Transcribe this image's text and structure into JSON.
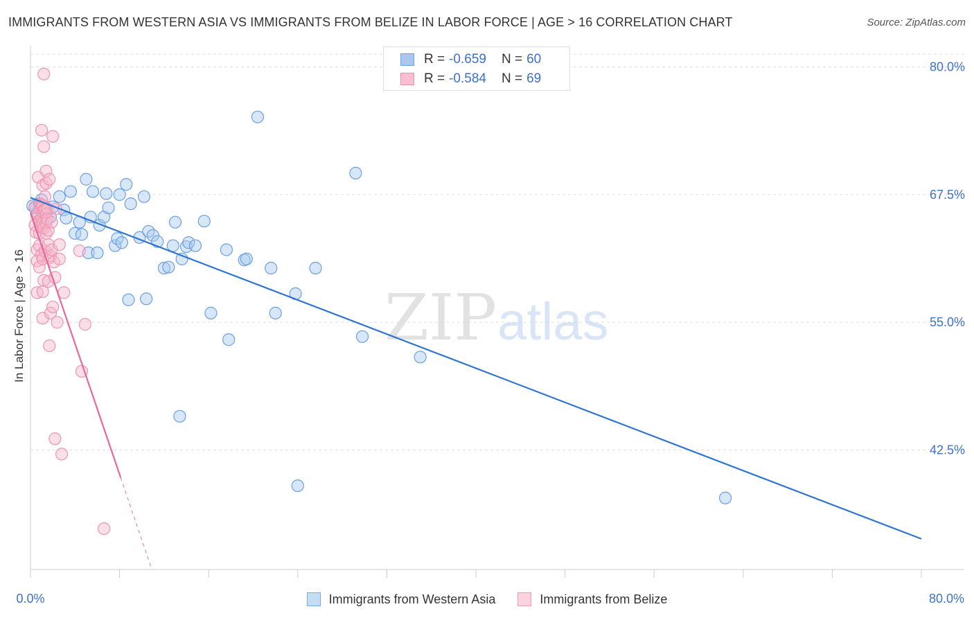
{
  "title": "IMMIGRANTS FROM WESTERN ASIA VS IMMIGRANTS FROM BELIZE IN LABOR FORCE | AGE > 16 CORRELATION CHART",
  "source": "Source: ZipAtlas.com",
  "watermark": {
    "zip": "ZIP",
    "atlas": "atlas"
  },
  "legend": {
    "r_label": "R =",
    "n_label": "N =",
    "rows": [
      {
        "r": "-0.659",
        "n": "60",
        "color": "#a8c8f0",
        "border": "#6fa0e0"
      },
      {
        "r": "-0.584",
        "n": "69",
        "color": "#f8c0d0",
        "border": "#e890a8"
      }
    ]
  },
  "bottom_legend": [
    {
      "label": "Immigrants from Western Asia",
      "color": "#c5dcf5",
      "border": "#7aaae6"
    },
    {
      "label": "Immigrants from Belize",
      "color": "#fbd3df",
      "border": "#ee9cb5"
    }
  ],
  "chart_data": {
    "type": "scatter",
    "title": "IMMIGRANTS FROM WESTERN ASIA VS IMMIGRANTS FROM BELIZE IN LABOR FORCE | AGE > 16 CORRELATION CHART",
    "xlabel": "",
    "ylabel": "In Labor Force | Age > 16",
    "xlim": [
      0,
      80
    ],
    "ylim": [
      30.8,
      81.8
    ],
    "x_tick_labels": [
      "0.0%",
      "80.0%"
    ],
    "y_ticks": [
      80.0,
      67.5,
      55.0,
      42.5
    ],
    "y_tick_labels": [
      "80.0%",
      "67.5%",
      "55.0%",
      "42.5%"
    ],
    "grid": true,
    "legend_position": "top-center",
    "series": [
      {
        "name": "Immigrants from Western Asia",
        "color": "#6a9fe3",
        "line_color": "#2f74d0",
        "trend": {
          "x": [
            0,
            80
          ],
          "y": [
            67.2,
            33.8
          ]
        },
        "points": [
          [
            0.2,
            66.4
          ],
          [
            0.4,
            66.2
          ],
          [
            0.6,
            65.7
          ],
          [
            0.8,
            66.6
          ],
          [
            1.0,
            67.0
          ],
          [
            1.4,
            66.0
          ],
          [
            1.8,
            65.3
          ],
          [
            2.0,
            66.3
          ],
          [
            2.6,
            67.3
          ],
          [
            3.0,
            66.0
          ],
          [
            3.2,
            65.2
          ],
          [
            3.6,
            67.8
          ],
          [
            4.0,
            63.7
          ],
          [
            4.4,
            64.8
          ],
          [
            4.6,
            63.6
          ],
          [
            5.0,
            69.0
          ],
          [
            5.2,
            61.8
          ],
          [
            5.4,
            65.3
          ],
          [
            5.6,
            67.8
          ],
          [
            6.0,
            61.8
          ],
          [
            6.2,
            64.5
          ],
          [
            6.6,
            65.3
          ],
          [
            6.8,
            67.6
          ],
          [
            7.0,
            66.2
          ],
          [
            7.6,
            62.5
          ],
          [
            7.8,
            63.2
          ],
          [
            8.0,
            67.5
          ],
          [
            8.2,
            62.8
          ],
          [
            8.6,
            68.5
          ],
          [
            8.8,
            57.2
          ],
          [
            9.0,
            66.6
          ],
          [
            9.8,
            63.3
          ],
          [
            10.2,
            67.3
          ],
          [
            10.4,
            57.3
          ],
          [
            10.6,
            63.9
          ],
          [
            11.0,
            63.5
          ],
          [
            11.4,
            62.9
          ],
          [
            12.0,
            60.3
          ],
          [
            12.4,
            60.4
          ],
          [
            12.8,
            62.5
          ],
          [
            13.0,
            64.8
          ],
          [
            13.4,
            45.8
          ],
          [
            13.6,
            61.2
          ],
          [
            14.0,
            62.4
          ],
          [
            14.2,
            62.8
          ],
          [
            14.8,
            62.5
          ],
          [
            15.6,
            64.9
          ],
          [
            16.2,
            55.9
          ],
          [
            17.6,
            62.1
          ],
          [
            17.8,
            53.3
          ],
          [
            19.2,
            61.1
          ],
          [
            19.4,
            61.2
          ],
          [
            20.4,
            75.1
          ],
          [
            21.6,
            60.3
          ],
          [
            22.0,
            55.9
          ],
          [
            23.8,
            57.8
          ],
          [
            24.0,
            39.0
          ],
          [
            25.6,
            60.3
          ],
          [
            29.2,
            69.6
          ],
          [
            29.8,
            53.6
          ],
          [
            35.0,
            51.6
          ],
          [
            62.4,
            37.8
          ]
        ]
      },
      {
        "name": "Immigrants from Belize",
        "color": "#f2a0b8",
        "line_color": "#e8679a",
        "trend": {
          "x": [
            0,
            8.1
          ],
          "y": [
            65.7,
            39.8
          ]
        },
        "trend_dashed": {
          "x": [
            8.1,
            10.9
          ],
          "y": [
            39.8,
            30.8
          ]
        },
        "points": [
          [
            0.4,
            66.3
          ],
          [
            0.4,
            64.5
          ],
          [
            0.5,
            63.8
          ],
          [
            0.6,
            62.1
          ],
          [
            0.6,
            61.0
          ],
          [
            0.6,
            57.9
          ],
          [
            0.7,
            69.2
          ],
          [
            0.7,
            65.6
          ],
          [
            0.8,
            65.0
          ],
          [
            0.8,
            64.8
          ],
          [
            0.8,
            63.7
          ],
          [
            0.8,
            62.5
          ],
          [
            0.8,
            60.4
          ],
          [
            0.9,
            66.6
          ],
          [
            0.9,
            66.1
          ],
          [
            0.9,
            64.5
          ],
          [
            1.0,
            73.8
          ],
          [
            1.0,
            66.5
          ],
          [
            1.0,
            65.2
          ],
          [
            1.0,
            64.3
          ],
          [
            1.0,
            61.6
          ],
          [
            1.1,
            68.4
          ],
          [
            1.1,
            66.4
          ],
          [
            1.1,
            65.8
          ],
          [
            1.1,
            64.7
          ],
          [
            1.1,
            61.2
          ],
          [
            1.1,
            58.0
          ],
          [
            1.1,
            55.4
          ],
          [
            1.2,
            79.3
          ],
          [
            1.2,
            72.2
          ],
          [
            1.2,
            66.0
          ],
          [
            1.2,
            64.2
          ],
          [
            1.2,
            59.1
          ],
          [
            1.3,
            67.3
          ],
          [
            1.3,
            66.0
          ],
          [
            1.3,
            62.0
          ],
          [
            1.4,
            69.8
          ],
          [
            1.4,
            68.6
          ],
          [
            1.4,
            65.6
          ],
          [
            1.4,
            64.7
          ],
          [
            1.4,
            63.7
          ],
          [
            1.5,
            66.1
          ],
          [
            1.5,
            65.1
          ],
          [
            1.6,
            64.0
          ],
          [
            1.6,
            62.6
          ],
          [
            1.6,
            59.0
          ],
          [
            1.7,
            69.0
          ],
          [
            1.7,
            61.3
          ],
          [
            1.7,
            52.7
          ],
          [
            1.8,
            55.9
          ],
          [
            1.8,
            61.5
          ],
          [
            1.9,
            62.1
          ],
          [
            1.9,
            64.8
          ],
          [
            2.0,
            73.2
          ],
          [
            2.0,
            56.5
          ],
          [
            2.1,
            60.9
          ],
          [
            2.2,
            59.4
          ],
          [
            2.2,
            43.6
          ],
          [
            2.3,
            66.1
          ],
          [
            2.4,
            55.0
          ],
          [
            2.6,
            61.2
          ],
          [
            2.6,
            62.6
          ],
          [
            2.8,
            42.1
          ],
          [
            3.0,
            57.9
          ],
          [
            4.4,
            62.0
          ],
          [
            4.6,
            50.2
          ],
          [
            4.9,
            54.8
          ],
          [
            6.6,
            34.8
          ]
        ]
      }
    ]
  }
}
